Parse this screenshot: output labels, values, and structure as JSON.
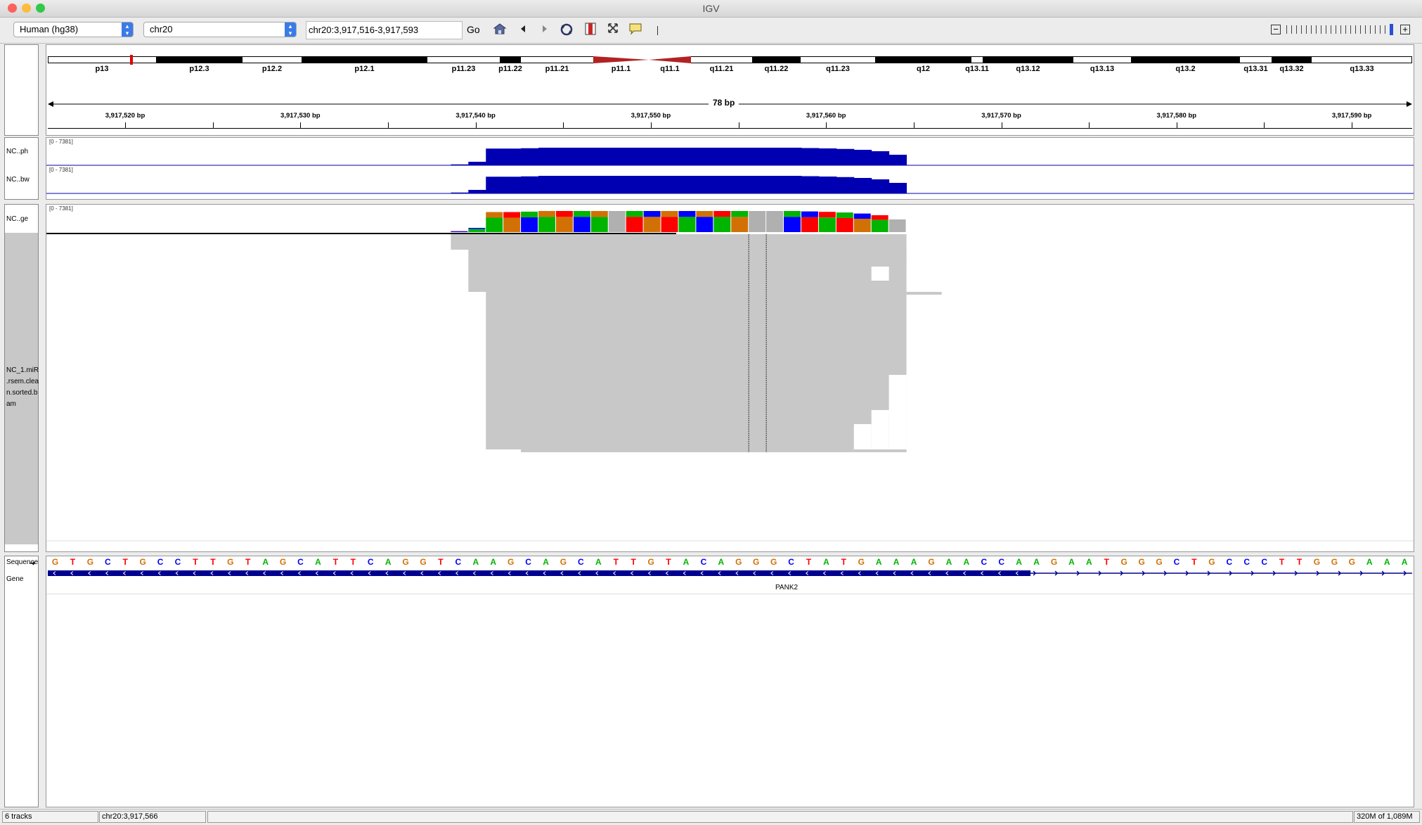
{
  "window": {
    "title": "IGV",
    "close_color": "#fc605b",
    "minimize_color": "#fdbc40",
    "zoom_color": "#34c84a"
  },
  "toolbar": {
    "genome": "Human (hg38)",
    "chromosome": "chr20",
    "locus": "chr20:3,917,516-3,917,593",
    "go_label": "Go",
    "icons": [
      "home-icon",
      "back-icon",
      "forward-icon",
      "refresh-icon",
      "roi-icon",
      "resize-icon",
      "popup-text-icon",
      "divider-icon"
    ]
  },
  "ideogram": {
    "bands": [
      {
        "label": "p13",
        "stain": "white"
      },
      {
        "label": "p12.3",
        "stain": "black"
      },
      {
        "label": "p12.2",
        "stain": "white"
      },
      {
        "label": "p12.1",
        "stain": "black"
      },
      {
        "label": "p11.23",
        "stain": "white"
      },
      {
        "label": "p11.22",
        "stain": "black"
      },
      {
        "label": "p11.21",
        "stain": "white"
      },
      {
        "label": "p11.1",
        "stain": "centromere"
      },
      {
        "label": "q11.1",
        "stain": "centromere"
      },
      {
        "label": "q11.21",
        "stain": "white"
      },
      {
        "label": "q11.22",
        "stain": "black"
      },
      {
        "label": "q11.23",
        "stain": "white"
      },
      {
        "label": "q12",
        "stain": "black"
      },
      {
        "label": "q13.11",
        "stain": "white"
      },
      {
        "label": "q13.12",
        "stain": "black"
      },
      {
        "label": "q13.13",
        "stain": "white"
      },
      {
        "label": "q13.2",
        "stain": "black"
      },
      {
        "label": "q13.31",
        "stain": "white"
      },
      {
        "label": "q13.32",
        "stain": "black"
      },
      {
        "label": "q13.33",
        "stain": "white"
      }
    ],
    "current_location_color": "#e00000"
  },
  "ruler": {
    "span_label": "78 bp",
    "ticks": [
      "3,917,520 bp",
      "3,917,530 bp",
      "3,917,540 bp",
      "3,917,550 bp",
      "3,917,560 bp",
      "3,917,570 bp",
      "3,917,580 bp",
      "3,917,590 bp"
    ]
  },
  "tracks": {
    "coverage1": {
      "name": "NC..ph",
      "range": "[0 - 7381]",
      "color": "#0000b2"
    },
    "coverage2": {
      "name": "NC..bw",
      "range": "[0 - 7381]",
      "color": "#0000b2"
    },
    "alignment_coverage": {
      "name": "NC..ge",
      "range": "[0 - 7381]"
    },
    "alignment": {
      "name_lines": [
        "NC_1.miR",
        ".rsem.clea",
        "n.sorted.b",
        "am"
      ],
      "read_color": "#c8c8c8"
    },
    "sequence": {
      "name": "Sequence"
    },
    "gene": {
      "name": "Gene",
      "gene_label": "PANK2",
      "color": "#000090"
    }
  },
  "sequence": "GTGCTGCCTTGTAGCATTCAGGTCAAGCAGCATTGTACAGGGCTATGAAAGAACCAAGAATGGGCTGCCCTTGGGAAA",
  "base_colors": {
    "A": "#00b400",
    "C": "#0000ff",
    "G": "#d17105",
    "T": "#ff0000"
  },
  "status": {
    "tracks": "6 tracks",
    "position": "chr20:3,917,566",
    "memory": "320M of 1,089M"
  }
}
